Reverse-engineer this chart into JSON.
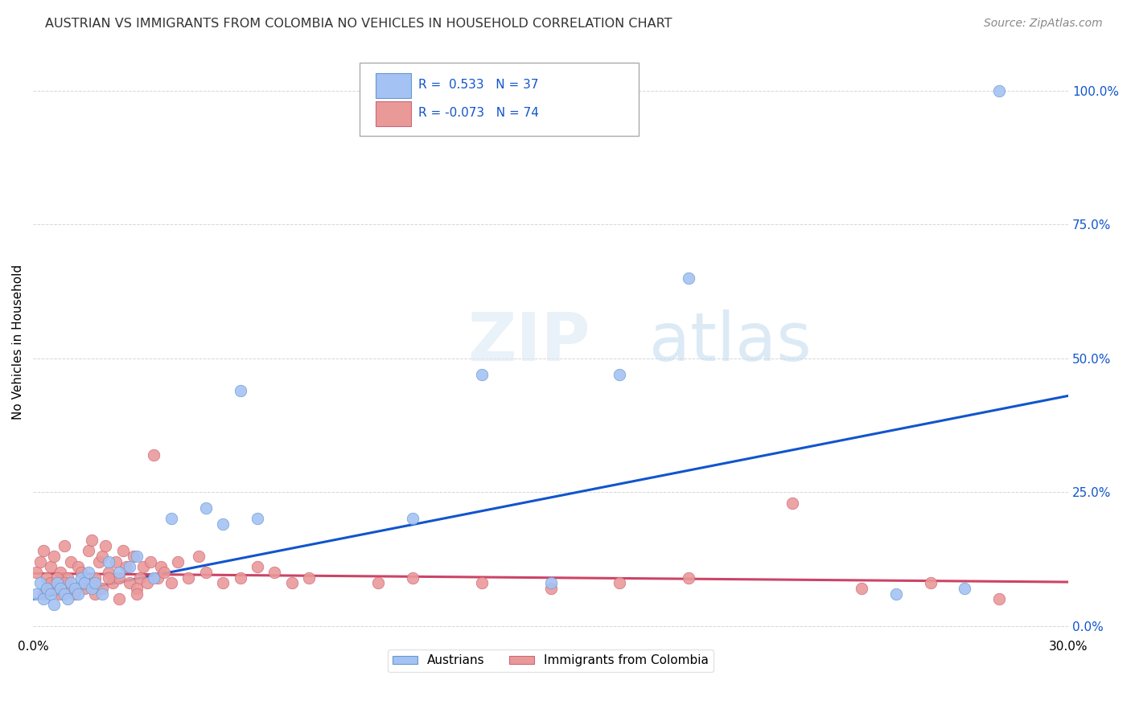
{
  "title": "AUSTRIAN VS IMMIGRANTS FROM COLOMBIA NO VEHICLES IN HOUSEHOLD CORRELATION CHART",
  "source": "Source: ZipAtlas.com",
  "ylabel": "No Vehicles in Household",
  "xlim": [
    0.0,
    0.3
  ],
  "ylim": [
    -0.02,
    1.08
  ],
  "yticks": [
    0.0,
    0.25,
    0.5,
    0.75,
    1.0
  ],
  "ytick_labels": [
    "0.0%",
    "25.0%",
    "50.0%",
    "75.0%",
    "100.0%"
  ],
  "xticks": [
    0.0,
    0.05,
    0.1,
    0.15,
    0.2,
    0.25,
    0.3
  ],
  "xtick_labels": [
    "0.0%",
    "",
    "",
    "",
    "",
    "",
    "30.0%"
  ],
  "blue_color": "#a4c2f4",
  "pink_color": "#ea9999",
  "blue_line_color": "#1155cc",
  "pink_line_color": "#cc4466",
  "blue_dot_edge": "#6699cc",
  "pink_dot_edge": "#cc6677",
  "austrians_x": [
    0.001,
    0.002,
    0.003,
    0.004,
    0.005,
    0.006,
    0.007,
    0.008,
    0.009,
    0.01,
    0.011,
    0.012,
    0.013,
    0.014,
    0.015,
    0.016,
    0.017,
    0.018,
    0.02,
    0.022,
    0.025,
    0.028,
    0.03,
    0.035,
    0.04,
    0.05,
    0.055,
    0.06,
    0.065,
    0.13,
    0.17,
    0.19,
    0.25,
    0.27,
    0.28,
    0.15,
    0.11
  ],
  "austrians_y": [
    0.06,
    0.08,
    0.05,
    0.07,
    0.06,
    0.04,
    0.08,
    0.07,
    0.06,
    0.05,
    0.08,
    0.07,
    0.06,
    0.09,
    0.08,
    0.1,
    0.07,
    0.08,
    0.06,
    0.12,
    0.1,
    0.11,
    0.13,
    0.09,
    0.2,
    0.22,
    0.19,
    0.44,
    0.2,
    0.47,
    0.47,
    0.65,
    0.06,
    0.07,
    1.0,
    0.08,
    0.2
  ],
  "colombia_x": [
    0.001,
    0.002,
    0.003,
    0.004,
    0.005,
    0.006,
    0.007,
    0.008,
    0.009,
    0.01,
    0.011,
    0.012,
    0.013,
    0.014,
    0.015,
    0.016,
    0.017,
    0.018,
    0.019,
    0.02,
    0.021,
    0.022,
    0.023,
    0.024,
    0.025,
    0.026,
    0.027,
    0.028,
    0.029,
    0.03,
    0.031,
    0.032,
    0.033,
    0.034,
    0.035,
    0.036,
    0.037,
    0.038,
    0.04,
    0.042,
    0.045,
    0.048,
    0.05,
    0.055,
    0.06,
    0.065,
    0.07,
    0.075,
    0.08,
    0.1,
    0.11,
    0.13,
    0.15,
    0.17,
    0.19,
    0.22,
    0.24,
    0.26,
    0.28,
    0.003,
    0.005,
    0.008,
    0.01,
    0.012,
    0.015,
    0.018,
    0.02,
    0.025,
    0.03,
    0.005,
    0.007,
    0.009,
    0.022
  ],
  "colombia_y": [
    0.1,
    0.12,
    0.14,
    0.09,
    0.11,
    0.13,
    0.08,
    0.1,
    0.15,
    0.09,
    0.12,
    0.07,
    0.11,
    0.1,
    0.08,
    0.14,
    0.16,
    0.09,
    0.12,
    0.13,
    0.15,
    0.1,
    0.08,
    0.12,
    0.09,
    0.14,
    0.11,
    0.08,
    0.13,
    0.07,
    0.09,
    0.11,
    0.08,
    0.12,
    0.32,
    0.09,
    0.11,
    0.1,
    0.08,
    0.12,
    0.09,
    0.13,
    0.1,
    0.08,
    0.09,
    0.11,
    0.1,
    0.08,
    0.09,
    0.08,
    0.09,
    0.08,
    0.07,
    0.08,
    0.09,
    0.23,
    0.07,
    0.08,
    0.05,
    0.06,
    0.07,
    0.06,
    0.07,
    0.06,
    0.07,
    0.06,
    0.07,
    0.05,
    0.06,
    0.08,
    0.09,
    0.08,
    0.09
  ],
  "blue_line_x0": 0.0,
  "blue_line_y0": 0.05,
  "blue_line_x1": 0.3,
  "blue_line_y1": 0.43,
  "pink_line_x0": 0.0,
  "pink_line_y0": 0.098,
  "pink_line_x1": 0.3,
  "pink_line_y1": 0.082
}
